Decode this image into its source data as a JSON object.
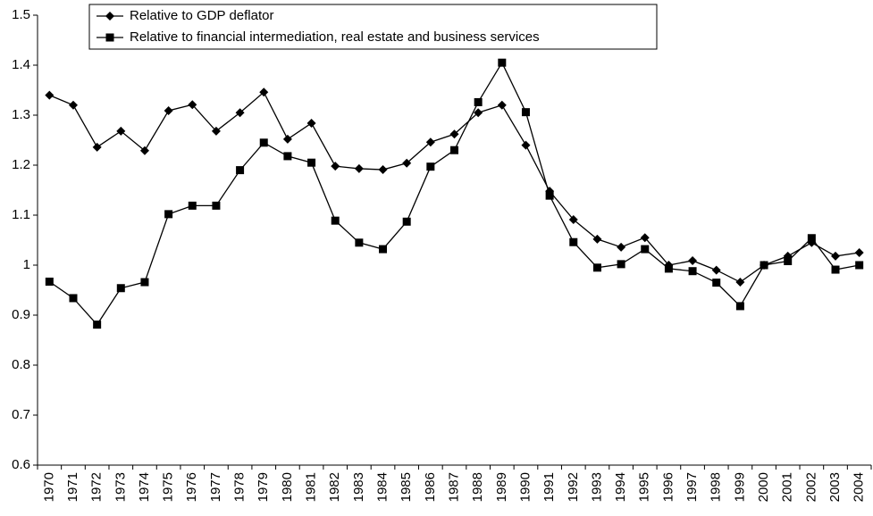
{
  "chart_data": {
    "type": "line",
    "categories": [
      "1970",
      "1971",
      "1972",
      "1973",
      "1974",
      "1975",
      "1976",
      "1977",
      "1978",
      "1979",
      "1980",
      "1981",
      "1982",
      "1983",
      "1984",
      "1985",
      "1986",
      "1987",
      "1988",
      "1989",
      "1990",
      "1991",
      "1992",
      "1993",
      "1994",
      "1995",
      "1996",
      "1997",
      "1998",
      "1999",
      "2000",
      "2001",
      "2002",
      "2003",
      "2004"
    ],
    "series": [
      {
        "name": "Relative to GDP deflator",
        "color": "#000000",
        "marker": "diamond",
        "values": [
          1.34,
          1.32,
          1.236,
          1.268,
          1.229,
          1.309,
          1.321,
          1.268,
          1.305,
          1.346,
          1.252,
          1.284,
          1.198,
          1.193,
          1.191,
          1.204,
          1.246,
          1.262,
          1.305,
          1.32,
          1.24,
          1.148,
          1.091,
          1.052,
          1.036,
          1.055,
          1.0,
          1.009,
          0.99,
          0.966,
          1.0,
          1.018,
          1.045,
          1.018,
          1.025
        ]
      },
      {
        "name": "Relative to financial intermediation, real estate and business services",
        "color": "#000000",
        "marker": "square",
        "values": [
          0.967,
          0.934,
          0.881,
          0.954,
          0.966,
          1.102,
          1.119,
          1.119,
          1.19,
          1.245,
          1.218,
          1.205,
          1.089,
          1.045,
          1.032,
          1.087,
          1.197,
          1.23,
          1.326,
          1.405,
          1.306,
          1.139,
          1.046,
          0.995,
          1.002,
          1.032,
          0.993,
          0.988,
          0.965,
          0.918,
          1.0,
          1.008,
          1.054,
          0.991,
          1.0
        ]
      }
    ],
    "ylim": [
      0.6,
      1.5
    ],
    "yticks": [
      0.6,
      0.7,
      0.8,
      0.9,
      1,
      1.1,
      1.2,
      1.3,
      1.4,
      1.5
    ],
    "grid": false,
    "legend": "top-left"
  }
}
